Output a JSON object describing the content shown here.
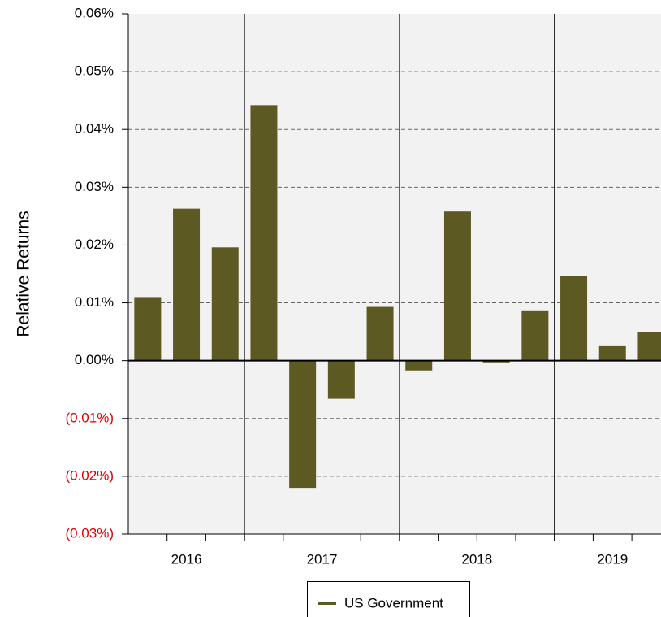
{
  "chart_data": {
    "type": "bar",
    "y_label": "Relative Returns",
    "categories": [
      null,
      null,
      null,
      null,
      null,
      null,
      null,
      null,
      null,
      null,
      null,
      null,
      null,
      null
    ],
    "groups": [
      {
        "label": "2016",
        "size": 3
      },
      {
        "label": "2017",
        "size": 4
      },
      {
        "label": "2018",
        "size": 4
      },
      {
        "label": "2019",
        "size": 3
      }
    ],
    "series": [
      {
        "name": "US Government",
        "color": "#5c5a22",
        "values": [
          0.011,
          0.0263,
          0.0196,
          0.0442,
          -0.022,
          -0.0066,
          0.0093,
          -0.0017,
          0.0258,
          -0.0003,
          0.0087,
          0.0146,
          0.0025,
          0.0049
        ]
      }
    ],
    "ylim": [
      -0.03,
      0.06
    ],
    "yticks": [
      {
        "value": 0.06,
        "label": "0.06%"
      },
      {
        "value": 0.05,
        "label": "0.05%"
      },
      {
        "value": 0.04,
        "label": "0.04%"
      },
      {
        "value": 0.03,
        "label": "0.03%"
      },
      {
        "value": 0.02,
        "label": "0.02%"
      },
      {
        "value": 0.01,
        "label": "0.01%"
      },
      {
        "value": 0,
        "label": "0.00%"
      },
      {
        "value": -0.01,
        "label": "(0.01%)"
      },
      {
        "value": -0.02,
        "label": "(0.02%)"
      },
      {
        "value": -0.03,
        "label": "(0.03%)"
      }
    ],
    "negative_tick_color": "#e00000",
    "grid": true,
    "legend": "bottom"
  }
}
